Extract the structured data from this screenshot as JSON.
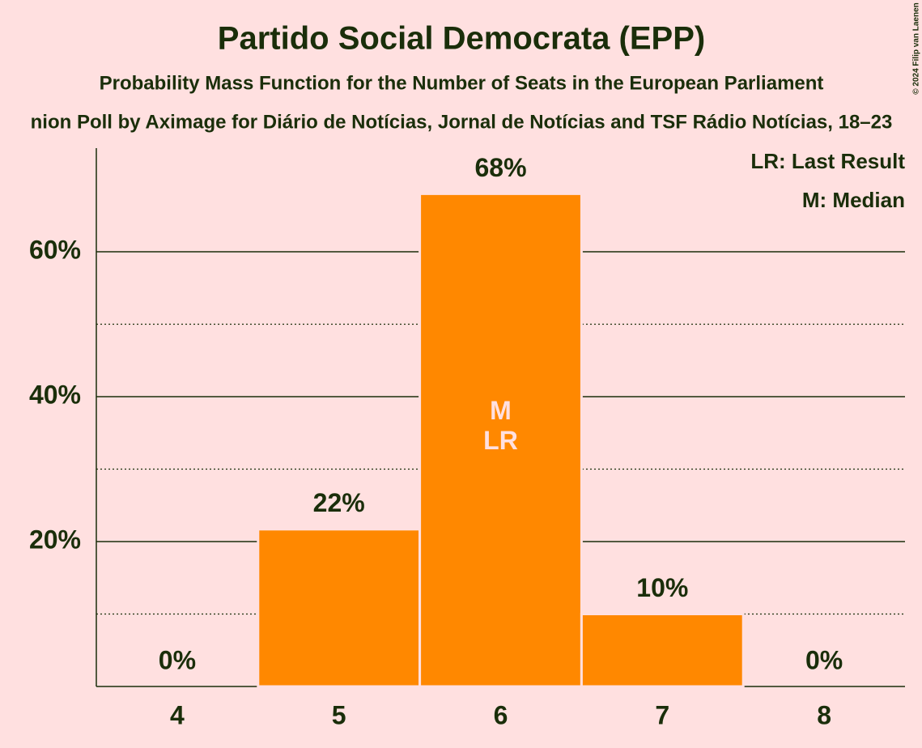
{
  "chart_data": {
    "type": "bar",
    "title": "Partido Social Democrata (EPP)",
    "subtitle": "Probability Mass Function for the Number of Seats in the European Parliament",
    "subtitle2": "nion Poll by Aximage for Diário de Notícias, Jornal de Notícias and TSF Rádio Notícias, 18–23",
    "copyright": "© 2024 Filip van Laenen",
    "categories": [
      "4",
      "5",
      "6",
      "7",
      "8"
    ],
    "values": [
      0,
      21.7,
      68,
      10,
      0
    ],
    "value_labels": [
      "0%",
      "22%",
      "68%",
      "10%",
      "0%"
    ],
    "color": "#ff8800",
    "ylim": [
      0,
      74.3
    ],
    "yticks": [
      {
        "value": 20,
        "label": "20%"
      },
      {
        "value": 40,
        "label": "40%"
      },
      {
        "value": 60,
        "label": "60%"
      }
    ],
    "minor_yticks": [
      10,
      30,
      50
    ],
    "grid": true,
    "bar_annotations": [
      {
        "category": "6",
        "lines": [
          "M",
          "LR"
        ]
      }
    ],
    "legend_notes": [
      "LR: Last Result",
      "M: Median"
    ]
  }
}
